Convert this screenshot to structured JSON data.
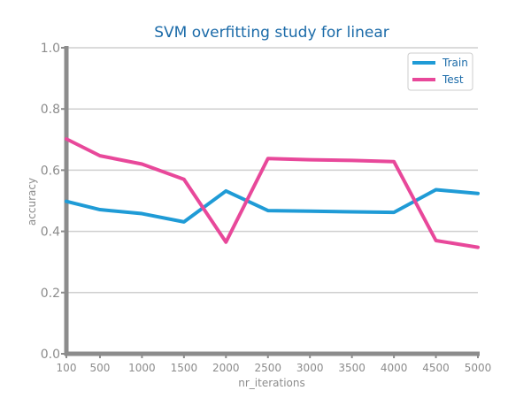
{
  "chart_data": {
    "type": "line",
    "title": "SVM overfitting study for linear",
    "xlabel": "nr_iterations",
    "ylabel": "accuracy",
    "x": [
      "100",
      "500",
      "1000",
      "1500",
      "2000",
      "2500",
      "3000",
      "3500",
      "4000",
      "4500",
      "5000"
    ],
    "yticks": [
      "0.0",
      "0.2",
      "0.4",
      "0.6",
      "0.8",
      "1.0"
    ],
    "ylim": [
      0,
      1
    ],
    "grid": true,
    "legend_position": "top-right",
    "series": [
      {
        "name": "Train",
        "color": "#1f9bd6",
        "values": [
          0.498,
          0.471,
          0.458,
          0.431,
          0.532,
          0.468,
          0.466,
          0.464,
          0.462,
          0.536,
          0.524
        ]
      },
      {
        "name": "Test",
        "color": "#e8489a",
        "values": [
          0.702,
          0.647,
          0.62,
          0.57,
          0.365,
          0.638,
          0.634,
          0.632,
          0.628,
          0.37,
          0.348
        ]
      }
    ]
  }
}
